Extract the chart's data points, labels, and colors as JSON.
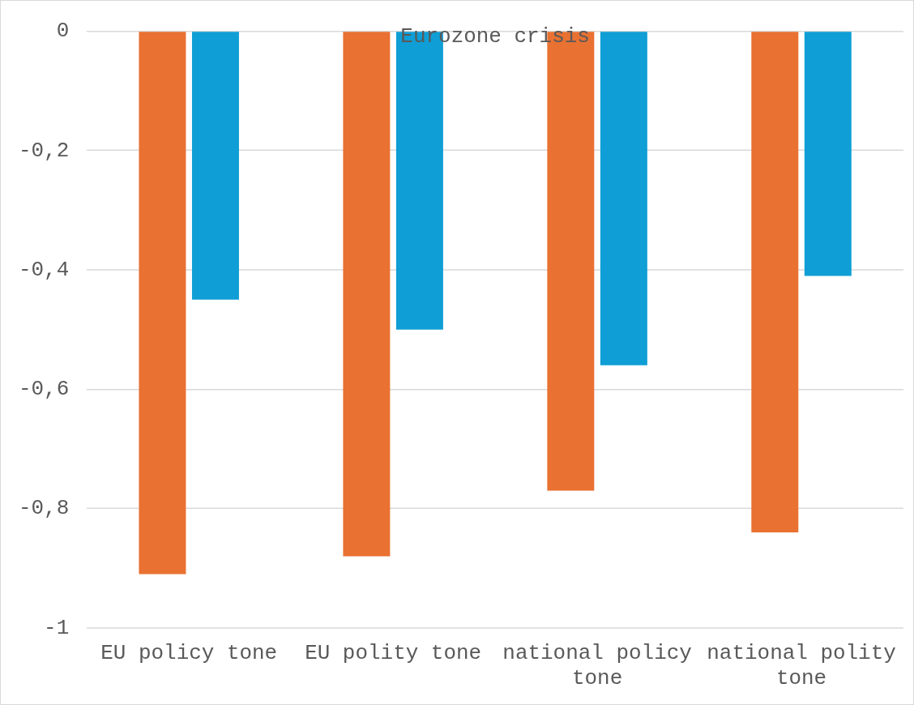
{
  "chart_data": {
    "type": "bar",
    "title": "Eurozone crisis",
    "categories": [
      "EU policy tone",
      "EU polity tone",
      "national policy tone",
      "national polity tone"
    ],
    "series": [
      {
        "color": "#e97132",
        "values": [
          -0.91,
          -0.88,
          -0.77,
          -0.84
        ]
      },
      {
        "color": "#0f9ed5",
        "values": [
          -0.45,
          -0.5,
          -0.56,
          -0.41
        ]
      }
    ],
    "ylim": [
      -1,
      0
    ],
    "yticks": [
      {
        "value": -1,
        "label": "-1"
      },
      {
        "value": -0.8,
        "label": "-0,8"
      },
      {
        "value": -0.6,
        "label": "-0,6"
      },
      {
        "value": -0.4,
        "label": "-0,4"
      },
      {
        "value": -0.2,
        "label": "-0,2"
      },
      0
    ],
    "grid": "y",
    "legend": false
  }
}
